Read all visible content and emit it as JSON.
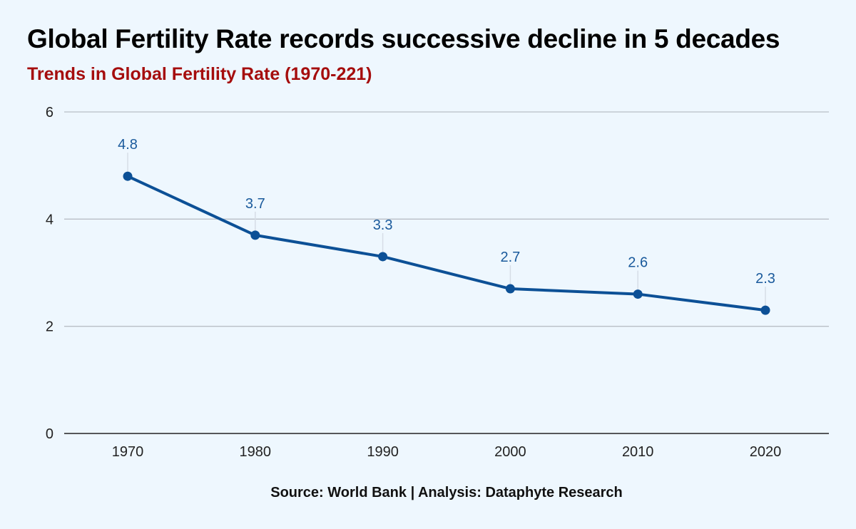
{
  "chart_data": {
    "type": "line",
    "title": "Global Fertility Rate records successive decline in 5 decades",
    "subtitle": "Trends in Global Fertility Rate (1970-221)",
    "source": "Source: World Bank | Analysis: Dataphyte Research",
    "xlabel": "",
    "ylabel": "",
    "x": [
      "1970",
      "1980",
      "1990",
      "2000",
      "2010",
      "2020"
    ],
    "series": [
      {
        "name": "Global Fertility Rate",
        "values": [
          4.8,
          3.7,
          3.3,
          2.7,
          2.6,
          2.3
        ]
      }
    ],
    "value_labels": [
      "4.8",
      "3.7",
      "3.3",
      "2.7",
      "2.6",
      "2.3"
    ],
    "ylim": [
      0,
      6
    ],
    "yticks": [
      0,
      2,
      4,
      6
    ],
    "ytick_labels": [
      "0",
      "2",
      "4",
      "6"
    ],
    "grid": true,
    "colors": {
      "line": "#0c5096",
      "label": "#1a5a9c",
      "grid": "#b9bec6"
    }
  }
}
